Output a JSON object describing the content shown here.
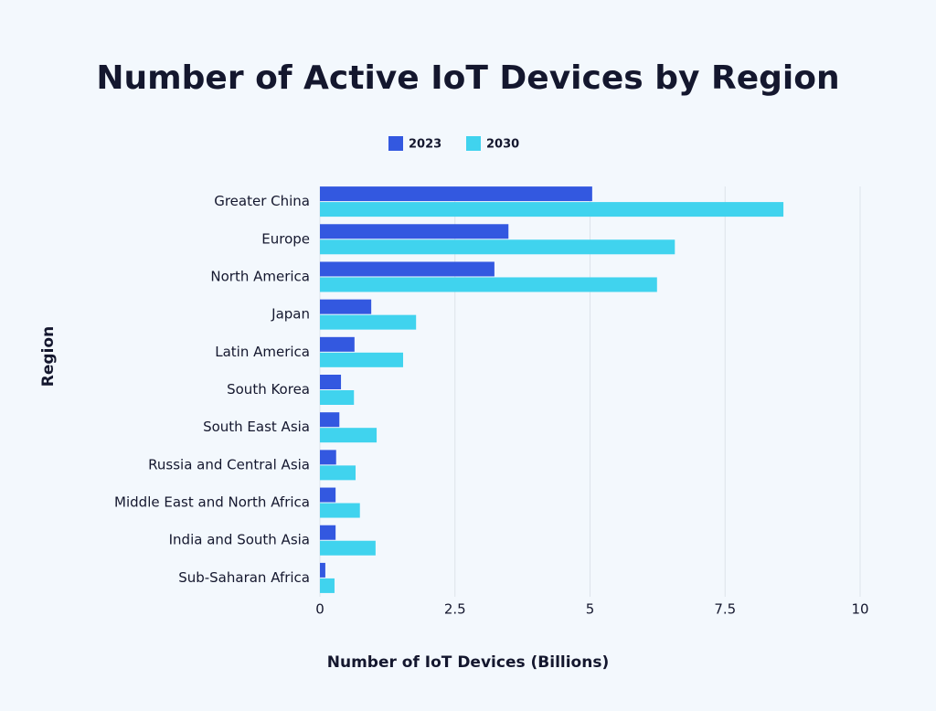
{
  "chart_data": {
    "type": "hbar",
    "title": "Number of Active IoT Devices by Region",
    "x_label": "Number of IoT Devices (Billions)",
    "y_label": "Region",
    "categories": [
      "Greater China",
      "Europe",
      "North America",
      "Japan",
      "Latin America",
      "South Korea",
      "South East Asia",
      "Russia and Central Asia",
      "Middle East and North Africa",
      "India and South Asia",
      "Sub-Saharan Africa"
    ],
    "series": [
      {
        "name": "2023",
        "color": "#3358e0",
        "values": [
          5.04,
          3.49,
          3.23,
          0.95,
          0.64,
          0.39,
          0.36,
          0.3,
          0.29,
          0.29,
          0.1
        ]
      },
      {
        "name": "2030",
        "color": "#40d3ee",
        "values": [
          8.58,
          6.57,
          6.24,
          1.78,
          1.54,
          0.63,
          1.05,
          0.66,
          0.74,
          1.03,
          0.27
        ]
      }
    ],
    "xlim": [
      0,
      10
    ],
    "xticks": [
      0,
      2.5,
      5,
      7.5,
      10
    ],
    "grid": true,
    "legend": "top"
  }
}
